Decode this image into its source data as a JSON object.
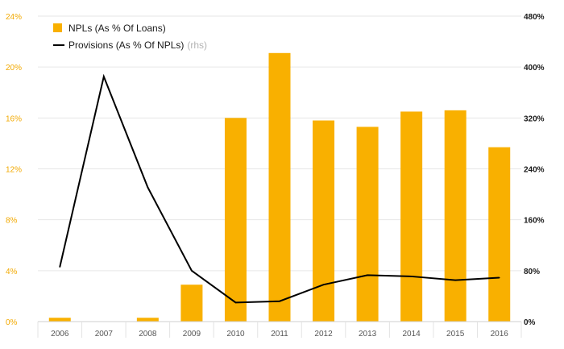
{
  "chart_data": {
    "type": "bar",
    "categories": [
      "2006",
      "2007",
      "2008",
      "2009",
      "2010",
      "2011",
      "2012",
      "2013",
      "2014",
      "2015",
      "2016"
    ],
    "series": [
      {
        "name": "NPLs (As % Of Loans)",
        "type": "bar",
        "axis": "left",
        "values": [
          0.3,
          0.0,
          0.3,
          2.9,
          16.0,
          21.1,
          15.8,
          15.3,
          16.5,
          16.6,
          13.7
        ]
      },
      {
        "name": "Provisions (As % Of NPLs)",
        "name_suffix": "(rhs)",
        "type": "line",
        "axis": "right",
        "values": [
          86,
          385,
          211,
          80,
          30,
          32,
          58,
          73,
          71,
          65,
          69
        ]
      }
    ],
    "y_left": {
      "ylim": [
        0,
        24
      ],
      "ticks": [
        0,
        4,
        8,
        12,
        16,
        20,
        24
      ],
      "tick_labels": [
        "0%",
        "4%",
        "8%",
        "12%",
        "16%",
        "20%",
        "24%"
      ]
    },
    "y_right": {
      "ylim": [
        0,
        480
      ],
      "ticks": [
        0,
        80,
        160,
        240,
        320,
        400,
        480
      ],
      "tick_labels": [
        "0%",
        "80%",
        "160%",
        "240%",
        "320%",
        "400%",
        "480%"
      ]
    },
    "grid": true,
    "legend_position": "top-left",
    "colors": {
      "bar": "#f9b000",
      "line": "#000000",
      "grid": "#e6e6e6",
      "left_ticks": "#f2a900",
      "right_ticks": "#1a1a1a"
    }
  }
}
